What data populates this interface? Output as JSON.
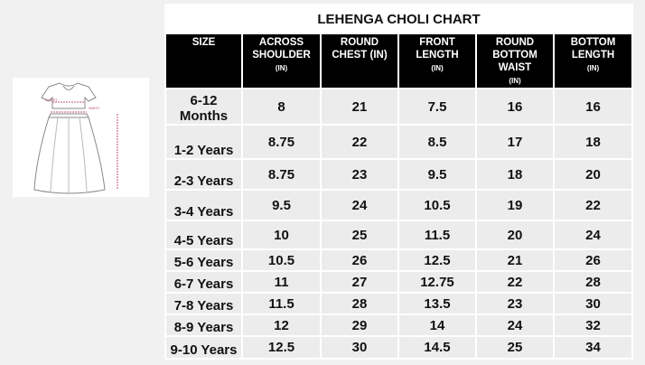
{
  "illustration": {
    "labels": [
      "CHEST",
      "WAIST"
    ]
  },
  "table": {
    "title": "LEHENGA CHOLI CHART",
    "header": [
      {
        "text": "SIZE"
      },
      {
        "text": "ACROSS SHOULDER",
        "unit": "(IN)"
      },
      {
        "text": "ROUND CHEST (IN)"
      },
      {
        "text": "FRONT LENGTH",
        "unit": "(IN)"
      },
      {
        "text": "ROUND BOTTOM WAIST",
        "unit": "(IN)"
      },
      {
        "text": "BOTTOM LENGTH",
        "unit": "(IN)"
      }
    ],
    "rows": [
      [
        "6-12 Months",
        "8",
        "21",
        "7.5",
        "16",
        "16"
      ],
      [
        "1-2 Years",
        "8.75",
        "22",
        "8.5",
        "17",
        "18"
      ],
      [
        "2-3 Years",
        "8.75",
        "23",
        "9.5",
        "18",
        "20"
      ],
      [
        "3-4 Years",
        "9.5",
        "24",
        "10.5",
        "19",
        "22"
      ],
      [
        "4-5 Years",
        "10",
        "25",
        "11.5",
        "20",
        "24"
      ],
      [
        "5-6 Years",
        "10.5",
        "26",
        "12.5",
        "21",
        "26"
      ],
      [
        "6-7 Years",
        "11",
        "27",
        "12.75",
        "22",
        "28"
      ],
      [
        "7-8 Years",
        "11.5",
        "28",
        "13.5",
        "23",
        "30"
      ],
      [
        "8-9 Years",
        "12",
        "29",
        "14",
        "24",
        "32"
      ],
      [
        "9-10 Years",
        "12.5",
        "30",
        "14.5",
        "25",
        "34"
      ]
    ]
  }
}
